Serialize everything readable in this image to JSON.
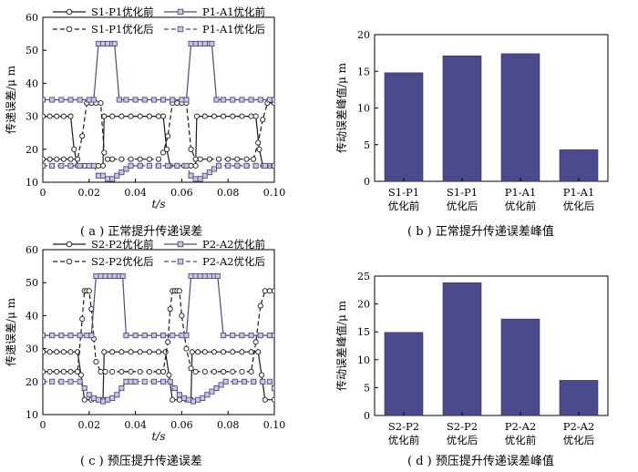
{
  "colors": {
    "black": "#1a1a1a",
    "blue": "#4b4a8a",
    "bar": "#4a4a8c"
  },
  "captions": {
    "a": "( a ) 正常提升传递误差",
    "b": "( b ) 正常提升传递误差峰值",
    "c": "( c ) 预压提升传递误差",
    "d": "( d ) 预压提升传递误差峰值"
  },
  "chart_data": [
    {
      "id": "a",
      "type": "line",
      "xlabel": "t/s",
      "ylabel": "传递误差/μ m",
      "xlim": [
        0,
        0.1
      ],
      "ylim": [
        10,
        60
      ],
      "xticks": [
        "0",
        "0.02",
        "0.04",
        "0.06",
        "0.08",
        "0.10"
      ],
      "yticks": [
        "10",
        "20",
        "30",
        "40",
        "50",
        "60"
      ],
      "legend": [
        "S1-P1优化前",
        "P1-A1优化前",
        "S1-P1优化后",
        "P1-A1优化后"
      ],
      "series": [
        {
          "name": "S1-P1优化前",
          "color": "black",
          "dash": false,
          "marker": "circle",
          "x": [
            0,
            0.003,
            0.006,
            0.009,
            0.012,
            0.0135,
            0.015,
            0.018,
            0.021,
            0.024,
            0.026,
            0.0265,
            0.03,
            0.034,
            0.038,
            0.042,
            0.046,
            0.05,
            0.052,
            0.0535,
            0.055,
            0.058,
            0.061,
            0.064,
            0.066,
            0.0665,
            0.07,
            0.074,
            0.078,
            0.082,
            0.086,
            0.09,
            0.092,
            0.0935,
            0.095,
            0.098,
            0.1
          ],
          "y": [
            30,
            30,
            30,
            30,
            30,
            20,
            15,
            15,
            15,
            15,
            15,
            30,
            30,
            30,
            30,
            30,
            30,
            30,
            30,
            20,
            15,
            15,
            15,
            15,
            15,
            30,
            30,
            30,
            30,
            30,
            30,
            30,
            30,
            20,
            15,
            15,
            15
          ]
        },
        {
          "name": "S1-P1优化后",
          "color": "black",
          "dash": true,
          "marker": "circle",
          "x": [
            0,
            0.003,
            0.006,
            0.009,
            0.012,
            0.015,
            0.017,
            0.019,
            0.021,
            0.023,
            0.025,
            0.0265,
            0.028,
            0.03,
            0.034,
            0.038,
            0.042,
            0.046,
            0.05,
            0.052,
            0.054,
            0.056,
            0.058,
            0.06,
            0.062,
            0.064,
            0.066,
            0.068,
            0.072,
            0.076,
            0.08,
            0.084,
            0.088,
            0.091,
            0.093,
            0.095,
            0.097,
            0.1
          ],
          "y": [
            17,
            17,
            17,
            17,
            17,
            17,
            24,
            34,
            34,
            34,
            34,
            19,
            17,
            17,
            17,
            17,
            17,
            17,
            17,
            19,
            24,
            34,
            34,
            34,
            34,
            20,
            17,
            17,
            17,
            17,
            17,
            17,
            17,
            17,
            22,
            29,
            34,
            34
          ]
        },
        {
          "name": "P1-A1优化前",
          "color": "blue",
          "dash": false,
          "marker": "square",
          "x": [
            0,
            0.004,
            0.008,
            0.012,
            0.016,
            0.02,
            0.022,
            0.024,
            0.026,
            0.028,
            0.03,
            0.031,
            0.033,
            0.036,
            0.04,
            0.044,
            0.048,
            0.052,
            0.056,
            0.06,
            0.062,
            0.064,
            0.066,
            0.068,
            0.07,
            0.072,
            0.073,
            0.075,
            0.078,
            0.082,
            0.086,
            0.09,
            0.094,
            0.098,
            0.1
          ],
          "y": [
            35,
            35,
            35,
            35,
            35,
            35,
            35,
            52,
            52,
            52,
            52,
            52,
            35,
            35,
            35,
            35,
            35,
            35,
            35,
            35,
            35,
            52,
            52,
            52,
            52,
            52,
            52,
            35,
            35,
            35,
            35,
            35,
            35,
            35,
            35
          ]
        },
        {
          "name": "P1-A1优化后",
          "color": "blue",
          "dash": true,
          "marker": "square",
          "x": [
            0,
            0.004,
            0.008,
            0.012,
            0.016,
            0.02,
            0.022,
            0.024,
            0.026,
            0.028,
            0.03,
            0.032,
            0.034,
            0.036,
            0.038,
            0.042,
            0.046,
            0.05,
            0.054,
            0.058,
            0.062,
            0.064,
            0.066,
            0.068,
            0.07,
            0.072,
            0.074,
            0.076,
            0.08,
            0.084,
            0.088,
            0.092,
            0.096,
            0.1
          ],
          "y": [
            15,
            15,
            15,
            15,
            15,
            15,
            15,
            12,
            12,
            11,
            11,
            12,
            13,
            14,
            15,
            15,
            15,
            15,
            15,
            15,
            15,
            12,
            11,
            11,
            12,
            13,
            14,
            15,
            15,
            15,
            15,
            15,
            15,
            15
          ]
        }
      ]
    },
    {
      "id": "b",
      "type": "bar",
      "ylabel": "传动误差峰值/μ m",
      "ylim": [
        0,
        20
      ],
      "yticks": [
        "0",
        "5",
        "10",
        "15",
        "20"
      ],
      "categories": [
        [
          "S1-P1",
          "优化前"
        ],
        [
          "S1-P1",
          "优化后"
        ],
        [
          "P1-A1",
          "优化前"
        ],
        [
          "P1-A1",
          "优化后"
        ]
      ],
      "values": [
        14.8,
        17.1,
        17.4,
        4.3
      ]
    },
    {
      "id": "c",
      "type": "line",
      "xlabel": "t/s",
      "ylabel": "传递误差/μ m",
      "xlim": [
        0,
        0.1
      ],
      "ylim": [
        10,
        60
      ],
      "xticks": [
        "0",
        "0.02",
        "0.04",
        "0.06",
        "0.08",
        "0.10"
      ],
      "yticks": [
        "10",
        "20",
        "30",
        "40",
        "50",
        "60"
      ],
      "legend": [
        "S2-P2优化前",
        "P2-A2优化前",
        "S2-P2优化后",
        "P2-A2优化后"
      ],
      "series": [
        {
          "name": "S2-P2优化前",
          "color": "black",
          "dash": false,
          "marker": "circle",
          "x": [
            0,
            0.003,
            0.006,
            0.009,
            0.012,
            0.015,
            0.0165,
            0.018,
            0.021,
            0.024,
            0.026,
            0.0265,
            0.03,
            0.034,
            0.038,
            0.042,
            0.046,
            0.05,
            0.053,
            0.0545,
            0.056,
            0.059,
            0.062,
            0.064,
            0.0645,
            0.067,
            0.07,
            0.074,
            0.078,
            0.082,
            0.086,
            0.09,
            0.093,
            0.0945,
            0.096,
            0.1
          ],
          "y": [
            29,
            29,
            29,
            29,
            29,
            29,
            22,
            14.5,
            14.5,
            14.5,
            14.5,
            29,
            29,
            29,
            29,
            29,
            29,
            29,
            29,
            22,
            14.5,
            14.5,
            14.5,
            14.5,
            29,
            29,
            29,
            29,
            29,
            29,
            29,
            29,
            29,
            22,
            14.5,
            14.5
          ]
        },
        {
          "name": "S2-P2优化后",
          "color": "black",
          "dash": true,
          "marker": "circle",
          "x": [
            0,
            0.003,
            0.006,
            0.009,
            0.012,
            0.015,
            0.017,
            0.018,
            0.019,
            0.02,
            0.021,
            0.022,
            0.023,
            0.025,
            0.027,
            0.03,
            0.034,
            0.038,
            0.042,
            0.046,
            0.05,
            0.052,
            0.054,
            0.055,
            0.056,
            0.057,
            0.058,
            0.059,
            0.06,
            0.062,
            0.064,
            0.066,
            0.07,
            0.074,
            0.078,
            0.082,
            0.086,
            0.09,
            0.092,
            0.094,
            0.096,
            0.098,
            0.1
          ],
          "y": [
            23,
            23,
            23,
            23,
            23,
            23,
            39,
            47.5,
            47.5,
            47.5,
            42,
            33,
            26,
            23,
            23,
            23,
            23,
            23,
            23,
            23,
            23,
            23,
            32,
            42,
            47.5,
            47.5,
            47.5,
            47.5,
            40,
            30,
            24,
            23,
            23,
            23,
            23,
            23,
            23,
            23,
            32,
            43,
            47.5,
            47.5,
            47.5
          ]
        },
        {
          "name": "P2-A2优化前",
          "color": "blue",
          "dash": false,
          "marker": "square",
          "x": [
            0,
            0.004,
            0.008,
            0.012,
            0.016,
            0.019,
            0.021,
            0.023,
            0.025,
            0.027,
            0.029,
            0.031,
            0.033,
            0.0345,
            0.036,
            0.04,
            0.044,
            0.048,
            0.052,
            0.056,
            0.06,
            0.062,
            0.064,
            0.066,
            0.068,
            0.07,
            0.072,
            0.074,
            0.0755,
            0.078,
            0.082,
            0.086,
            0.09,
            0.094,
            0.098,
            0.1
          ],
          "y": [
            34,
            34,
            34,
            34,
            34,
            34,
            34,
            52,
            52,
            52,
            52,
            52,
            52,
            52,
            34,
            34,
            34,
            34,
            34,
            34,
            34,
            34,
            52,
            52,
            52,
            52,
            52,
            52,
            52,
            34,
            34,
            34,
            34,
            34,
            34,
            34
          ]
        },
        {
          "name": "P2-A2优化后",
          "color": "blue",
          "dash": true,
          "marker": "square",
          "x": [
            0,
            0.004,
            0.008,
            0.012,
            0.016,
            0.018,
            0.02,
            0.022,
            0.024,
            0.026,
            0.028,
            0.03,
            0.032,
            0.034,
            0.036,
            0.038,
            0.04,
            0.044,
            0.048,
            0.052,
            0.055,
            0.057,
            0.059,
            0.061,
            0.063,
            0.065,
            0.067,
            0.069,
            0.071,
            0.073,
            0.075,
            0.077,
            0.079,
            0.083,
            0.087,
            0.091,
            0.095,
            0.098,
            0.1
          ],
          "y": [
            20,
            20,
            20,
            20,
            20,
            18,
            16,
            15,
            14.5,
            14,
            14.5,
            15,
            16,
            18,
            20,
            20,
            20,
            20,
            20,
            20,
            20,
            18,
            16,
            15,
            14.5,
            14,
            14.5,
            15,
            16,
            17,
            18,
            19,
            20,
            20,
            20,
            20,
            20,
            20,
            18
          ]
        }
      ]
    },
    {
      "id": "d",
      "type": "bar",
      "ylabel": "传动误差峰值/μ m",
      "ylim": [
        0,
        25
      ],
      "yticks": [
        "0",
        "5",
        "10",
        "15",
        "20",
        "25"
      ],
      "categories": [
        [
          "S2-P2",
          "优化前"
        ],
        [
          "S2-P2",
          "优化后"
        ],
        [
          "P2-A2",
          "优化前"
        ],
        [
          "P2-A2",
          "优化后"
        ]
      ],
      "values": [
        14.9,
        23.8,
        17.3,
        6.3
      ]
    }
  ]
}
